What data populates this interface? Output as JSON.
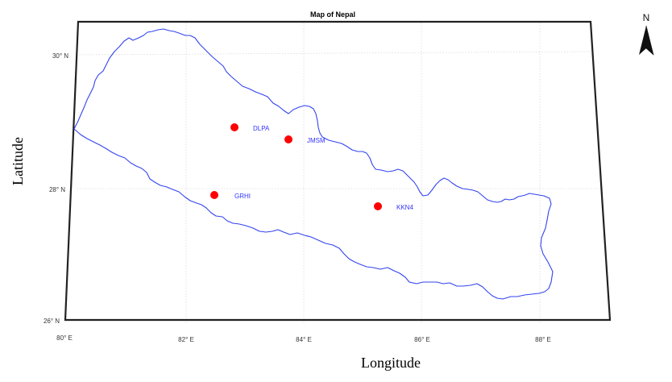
{
  "map": {
    "title": "Map of Nepal",
    "xlabel": "Longitude",
    "ylabel": "Latitude",
    "north_label": "N",
    "lon_ticks": [
      "80° E",
      "82° E",
      "84° E",
      "86° E",
      "88° E"
    ],
    "lat_ticks": [
      "30° N",
      "28° N",
      "26° N"
    ],
    "border_color": "#3344ee",
    "marker_color": "#ff0000",
    "label_color": "#3333ff",
    "grid": true
  },
  "stations": [
    {
      "name": "DLPA",
      "lon": 82.8,
      "lat": 28.9
    },
    {
      "name": "JMSM",
      "lon": 83.75,
      "lat": 28.75
    },
    {
      "name": "GRHI",
      "lon": 82.5,
      "lat": 27.9
    },
    {
      "name": "KKN4",
      "lon": 85.28,
      "lat": 27.72
    }
  ]
}
